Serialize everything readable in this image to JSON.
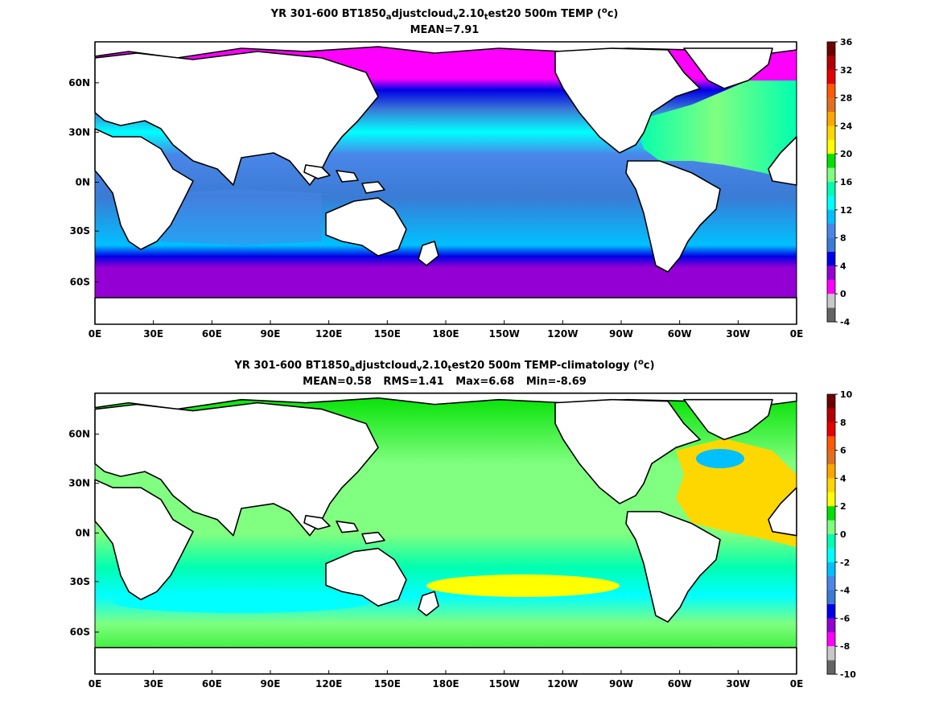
{
  "panel1": {
    "title": {
      "prefix": "YR 301-600 BT1850",
      "sub1": "a",
      "mid1": "djustcloud",
      "sub2": "v",
      "mid2": "2.10",
      "sub3": "t",
      "mid3": "est20 500m TEMP (",
      "sup": "o",
      "suffix": "c)"
    },
    "stats": [
      {
        "label": "MEAN=7.91"
      }
    ],
    "colorbar": {
      "tick_labels": [
        "36",
        "32",
        "28",
        "24",
        "20",
        "16",
        "12",
        "8",
        "4",
        "0",
        "-4"
      ],
      "colors": [
        "#6e0000",
        "#b30000",
        "#e60000",
        "#ff5a00",
        "#e07020",
        "#ffa500",
        "#ffd700",
        "#ffff00",
        "#00e000",
        "#80ff80",
        "#00ffb0",
        "#00ffff",
        "#00c0ff",
        "#4a86e8",
        "#3a7bd5",
        "#0000e6",
        "#9400d3",
        "#ff00ff",
        "#c8c8c8",
        "#646464"
      ]
    },
    "chart_data": {
      "type": "heatmap",
      "variable": "TEMP",
      "units": "°c",
      "depth": "500m",
      "mean": 7.91,
      "colorbar_range": [
        -4,
        36
      ],
      "colorbar_ticks": [
        -4,
        0,
        4,
        8,
        12,
        16,
        20,
        24,
        28,
        32,
        36
      ],
      "x_ticks": [
        "0E",
        "30E",
        "60E",
        "90E",
        "120E",
        "150E",
        "180E",
        "150W",
        "120W",
        "90W",
        "60W",
        "30W",
        "0E"
      ],
      "y_ticks": [
        "60N",
        "30N",
        "0N",
        "30S",
        "60S"
      ]
    }
  },
  "panel2": {
    "title": {
      "prefix": "YR 301-600 BT1850",
      "sub1": "a",
      "mid1": "djustcloud",
      "sub2": "v",
      "mid2": "2.10",
      "sub3": "t",
      "mid3": "est20 500m TEMP-climatology (",
      "sup": "o",
      "suffix": "c)"
    },
    "stats": [
      {
        "label": "MEAN=0.58"
      },
      {
        "label": "RMS=1.41"
      },
      {
        "label": "Max=6.68"
      },
      {
        "label": "Min=-8.69"
      }
    ],
    "colorbar": {
      "tick_labels": [
        "10",
        "8",
        "6",
        "4",
        "2",
        "0",
        "-2",
        "-4",
        "-6",
        "-8",
        "-10"
      ],
      "colors": [
        "#6e0000",
        "#b30000",
        "#e60000",
        "#ff5a00",
        "#e07020",
        "#ffa500",
        "#ffd700",
        "#ffff00",
        "#00e000",
        "#80ff80",
        "#00ffb0",
        "#00ffff",
        "#00c0ff",
        "#4a86e8",
        "#3a7bd5",
        "#0000e6",
        "#9400d3",
        "#ff00ff",
        "#c8c8c8",
        "#646464"
      ]
    },
    "chart_data": {
      "type": "heatmap",
      "variable": "TEMP-climatology",
      "units": "°c",
      "depth": "500m",
      "mean": 0.58,
      "rms": 1.41,
      "max": 6.68,
      "min": -8.69,
      "colorbar_range": [
        -10,
        10
      ],
      "colorbar_ticks": [
        -10,
        -8,
        -6,
        -4,
        -2,
        0,
        2,
        4,
        6,
        8,
        10
      ],
      "x_ticks": [
        "0E",
        "30E",
        "60E",
        "90E",
        "120E",
        "150E",
        "180E",
        "150W",
        "120W",
        "90W",
        "60W",
        "30W",
        "0E"
      ],
      "y_ticks": [
        "60N",
        "30N",
        "0N",
        "30S",
        "60S"
      ]
    }
  }
}
